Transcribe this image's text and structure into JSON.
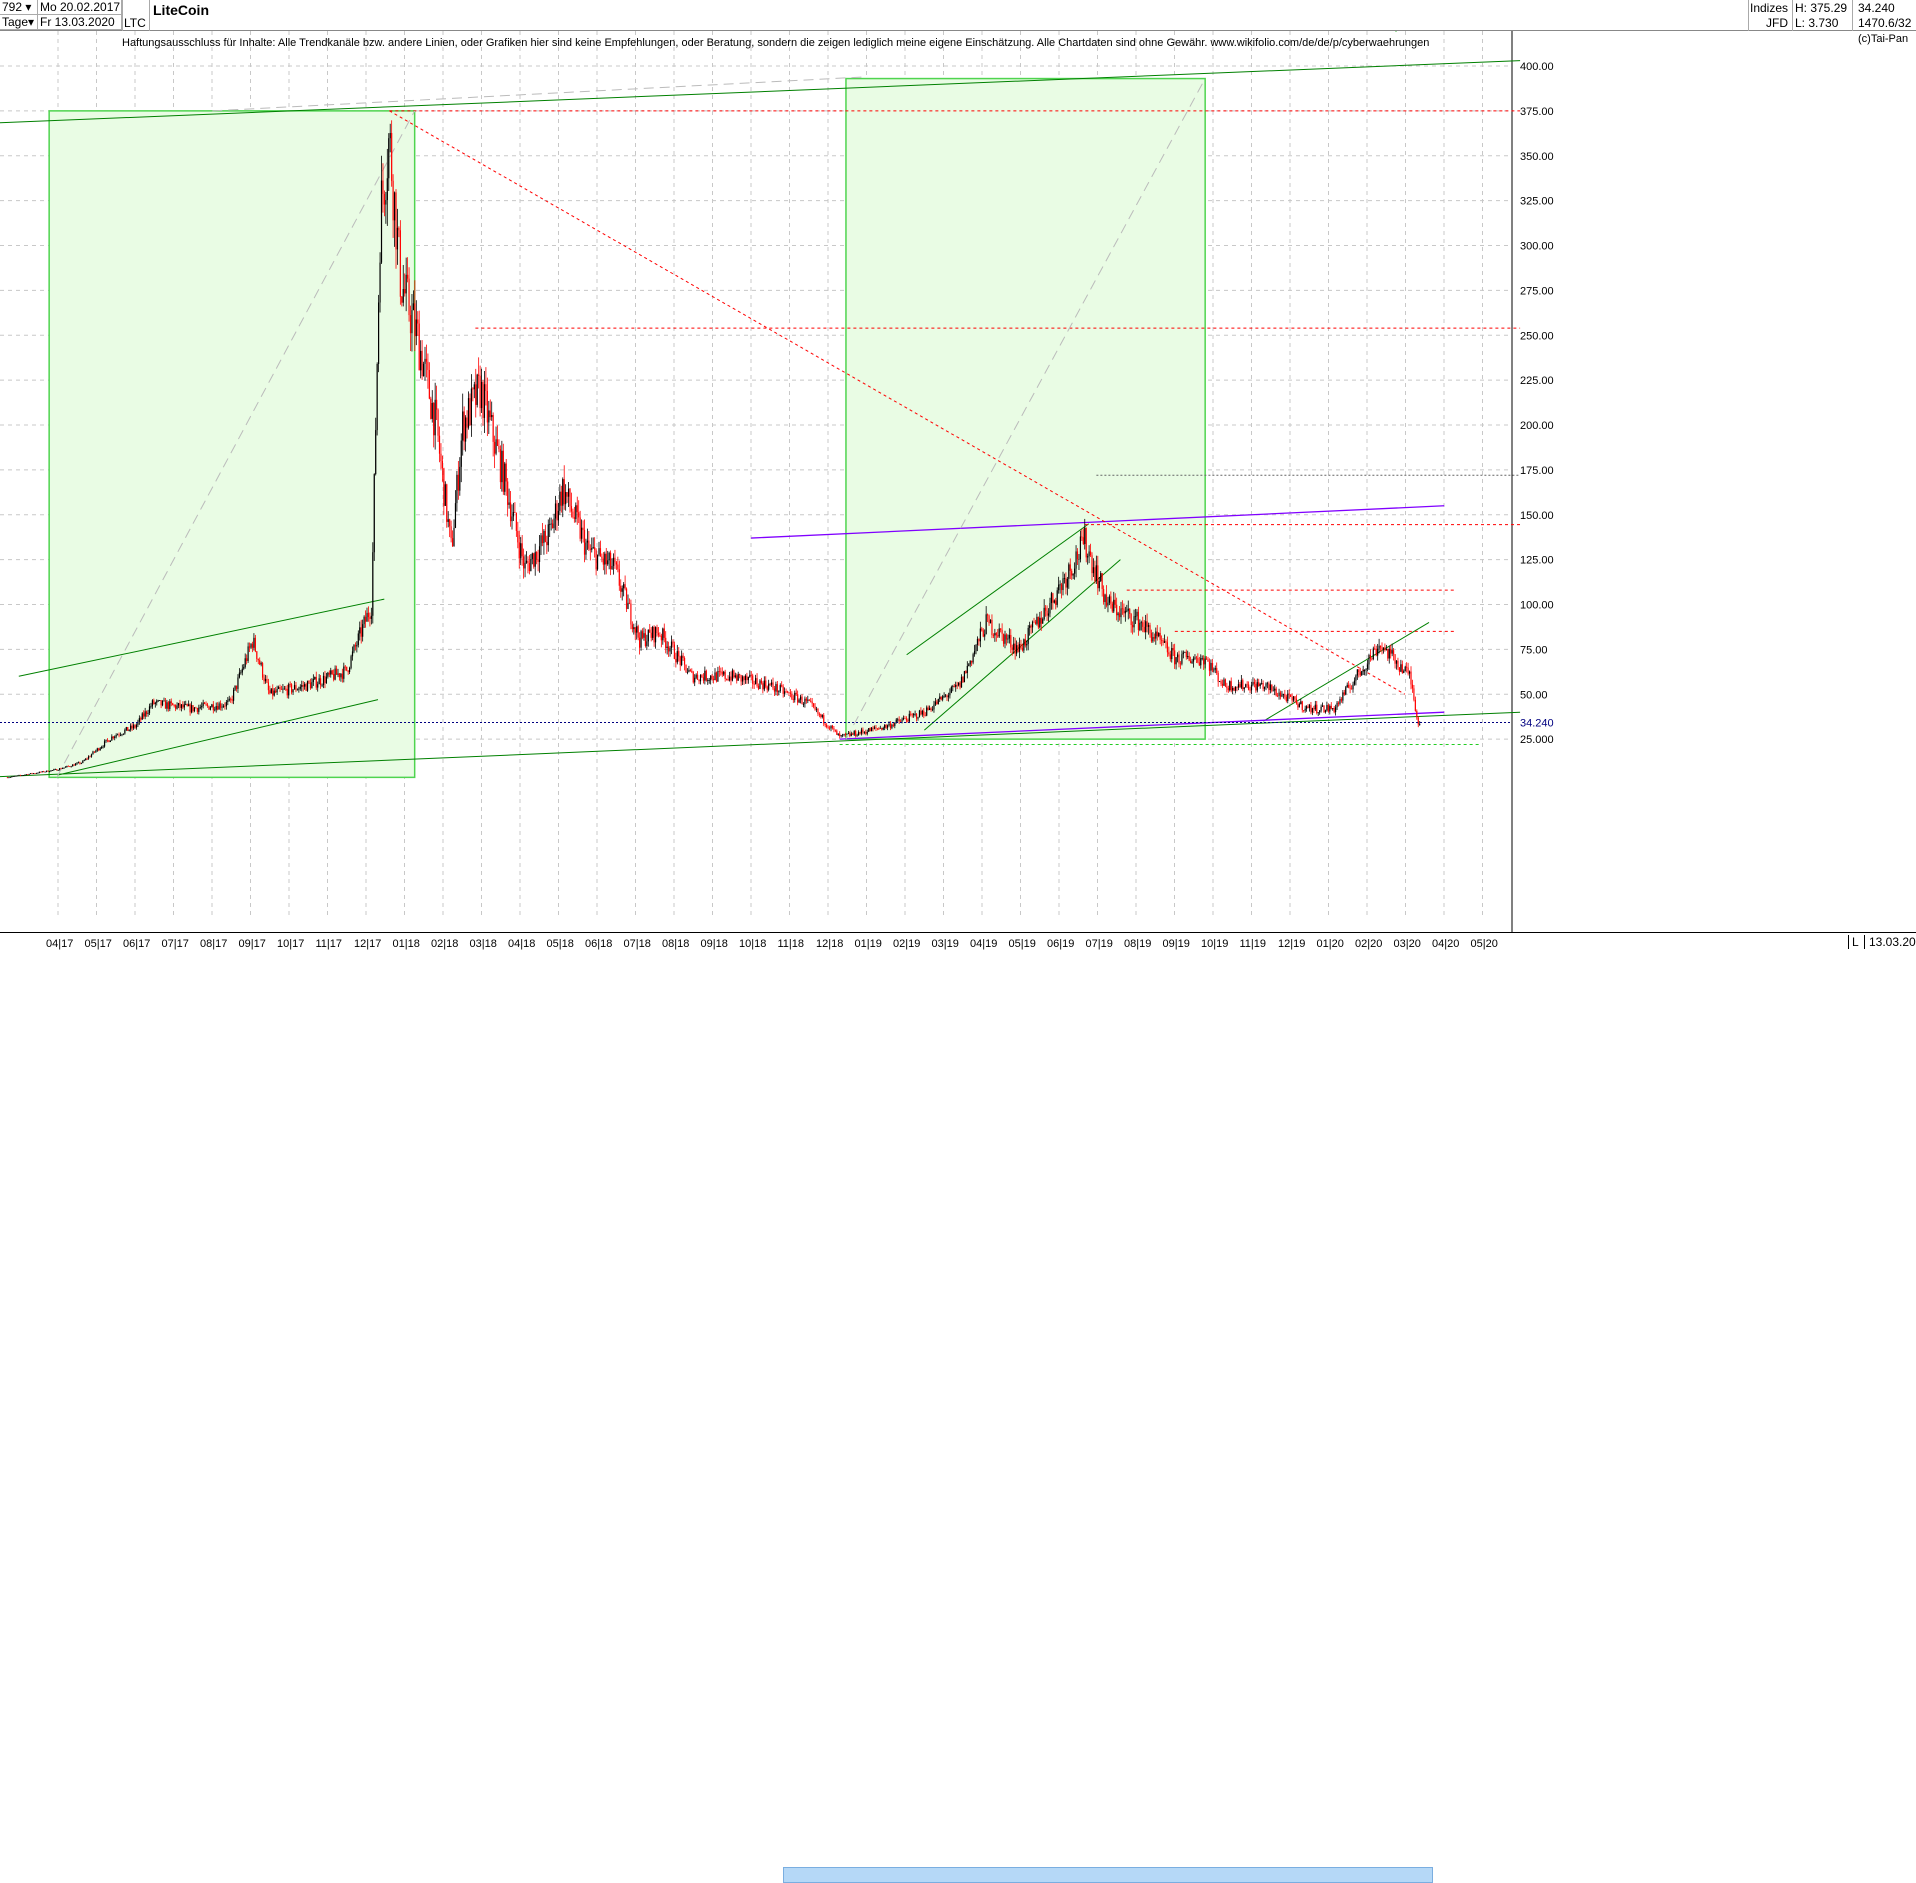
{
  "header": {
    "bars": "792",
    "period": "Tage",
    "start_date": "Mo 20.02.2017",
    "end_date": "Fr 13.03.2020",
    "symbol": "LTC",
    "title": "LiteCoin",
    "exchange_top": "Indizes",
    "exchange_bottom": "JFD",
    "high": "H: 375.29",
    "low": "L: 3.730",
    "last": "34.240",
    "extra": "1470.6/32"
  },
  "disclaimer": "Haftungsausschluss für Inhalte: Alle Trendkanäle bzw. andere Linien, oder Grafiken hier sind keine Empfehlungen, oder Beratung, sondern die zeigen lediglich meine eigene Einschätzung. Alle Chartdaten sind ohne Gewähr.  www.wikifolio.com/de/de/p/cyberwaehrungen",
  "copyright": "(c)Tai-Pan",
  "footer": {
    "mode": "L",
    "date": "13.03.20"
  },
  "colors": {
    "up": "#000000",
    "down": "#ff0000",
    "trend": "#008000",
    "fill": "#e9fce4",
    "resistance": "#ff0000",
    "channel": "#8000ff",
    "last": "#000080"
  },
  "chart_data": {
    "type": "candlestick",
    "title": "LiteCoin",
    "ylim": [
      0,
      410
    ],
    "yticks": [
      25,
      50,
      75,
      100,
      125,
      150,
      175,
      200,
      225,
      250,
      275,
      300,
      325,
      350,
      375,
      400
    ],
    "ytick_labels": [
      "25.000",
      "50.00",
      "75.00",
      "100.00",
      "125.00",
      "150.00",
      "175.00",
      "200.00",
      "225.00",
      "250.00",
      "275.00",
      "300.00",
      "325.00",
      "350.00",
      "375.00",
      "400.00"
    ],
    "last_label": "34.240",
    "xtick_labels": [
      "04|17",
      "05|17",
      "06|17",
      "07|17",
      "08|17",
      "09|17",
      "10|17",
      "11|17",
      "12|17",
      "01|18",
      "02|18",
      "03|18",
      "04|18",
      "05|18",
      "06|18",
      "07|18",
      "08|18",
      "09|18",
      "10|18",
      "11|18",
      "12|18",
      "01|19",
      "02|19",
      "03|19",
      "04|19",
      "05|19",
      "06|19",
      "07|19",
      "08|19",
      "09|19",
      "10|19",
      "11|19",
      "12|19",
      "01|20",
      "02|20",
      "03|20",
      "04|20",
      "05|20"
    ],
    "close_path": [
      [
        "2017-02-20",
        3.7
      ],
      [
        "2017-03-31",
        8
      ],
      [
        "2017-04-20",
        12
      ],
      [
        "2017-05-15",
        27
      ],
      [
        "2017-06-01",
        32
      ],
      [
        "2017-06-15",
        45
      ],
      [
        "2017-07-15",
        42
      ],
      [
        "2017-08-15",
        45
      ],
      [
        "2017-09-02",
        80
      ],
      [
        "2017-09-15",
        50
      ],
      [
        "2017-10-15",
        55
      ],
      [
        "2017-11-15",
        63
      ],
      [
        "2017-12-05",
        100
      ],
      [
        "2017-12-12",
        320
      ],
      [
        "2017-12-19",
        360
      ],
      [
        "2017-12-28",
        280
      ],
      [
        "2018-01-10",
        250
      ],
      [
        "2018-01-25",
        200
      ],
      [
        "2018-02-06",
        130
      ],
      [
        "2018-02-15",
        200
      ],
      [
        "2018-03-01",
        220
      ],
      [
        "2018-03-20",
        170
      ],
      [
        "2018-04-05",
        120
      ],
      [
        "2018-04-25",
        140
      ],
      [
        "2018-05-05",
        165
      ],
      [
        "2018-05-25",
        130
      ],
      [
        "2018-06-15",
        120
      ],
      [
        "2018-06-25",
        100
      ],
      [
        "2018-07-05",
        80
      ],
      [
        "2018-07-20",
        85
      ],
      [
        "2018-08-15",
        60
      ],
      [
        "2018-09-15",
        60
      ],
      [
        "2018-10-15",
        55
      ],
      [
        "2018-11-15",
        45
      ],
      [
        "2018-12-10",
        26
      ],
      [
        "2019-01-15",
        32
      ],
      [
        "2019-02-15",
        40
      ],
      [
        "2019-03-15",
        55
      ],
      [
        "2019-04-05",
        90
      ],
      [
        "2019-05-01",
        75
      ],
      [
        "2019-05-25",
        100
      ],
      [
        "2019-06-22",
        135
      ],
      [
        "2019-07-10",
        100
      ],
      [
        "2019-08-05",
        90
      ],
      [
        "2019-09-01",
        70
      ],
      [
        "2019-09-25",
        70
      ],
      [
        "2019-10-10",
        55
      ],
      [
        "2019-11-10",
        55
      ],
      [
        "2019-12-15",
        42
      ],
      [
        "2020-01-05",
        42
      ],
      [
        "2020-02-10",
        78
      ],
      [
        "2020-03-05",
        60
      ],
      [
        "2020-03-12",
        32
      ],
      [
        "2020-03-13",
        34.24
      ]
    ],
    "boxes": [
      {
        "from": [
          "2017-03-25",
          3.7
        ],
        "to": [
          "2018-01-08",
          375
        ]
      },
      {
        "from": [
          "2018-12-15",
          25
        ],
        "to": [
          "2019-09-25",
          393
        ]
      }
    ],
    "lines": [
      {
        "style": "trend",
        "p": [
          [
            "2017-02-01",
            368
          ],
          [
            "2020-05-31",
            403
          ]
        ]
      },
      {
        "style": "trend",
        "p": [
          [
            "2017-02-01",
            3.7
          ],
          [
            "2020-05-31",
            40
          ]
        ]
      },
      {
        "style": "trend",
        "p": [
          [
            "2017-03-01",
            60
          ],
          [
            "2017-12-15",
            103
          ]
        ]
      },
      {
        "style": "trend",
        "p": [
          [
            "2017-04-01",
            5
          ],
          [
            "2017-12-10",
            47
          ]
        ]
      },
      {
        "style": "trend",
        "p": [
          [
            "2019-02-01",
            72
          ],
          [
            "2019-06-25",
            145
          ]
        ]
      },
      {
        "style": "trend",
        "p": [
          [
            "2019-02-15",
            30
          ],
          [
            "2019-07-20",
            125
          ]
        ]
      },
      {
        "style": "trend",
        "p": [
          [
            "2019-11-10",
            35
          ],
          [
            "2020-03-20",
            90
          ]
        ]
      },
      {
        "style": "channel",
        "p": [
          [
            "2018-10-01",
            137
          ],
          [
            "2020-04-01",
            155
          ]
        ]
      },
      {
        "style": "channel",
        "p": [
          [
            "2018-12-10",
            25
          ],
          [
            "2020-04-01",
            40
          ]
        ]
      },
      {
        "style": "resdiag",
        "p": [
          [
            "2017-12-19",
            375
          ],
          [
            "2020-03-01",
            50
          ]
        ]
      },
      {
        "style": "res",
        "p": [
          [
            "2017-12-19",
            375
          ],
          [
            "2020-05-31",
            375
          ]
        ]
      },
      {
        "style": "res",
        "p": [
          [
            "2018-02-25",
            254
          ],
          [
            "2020-05-31",
            254
          ]
        ]
      },
      {
        "style": "res",
        "p": [
          [
            "2019-06-22",
            144.5
          ],
          [
            "2020-05-31",
            144.5
          ]
        ]
      },
      {
        "style": "res",
        "p": [
          [
            "2019-07-25",
            108
          ],
          [
            "2020-04-10",
            108
          ]
        ]
      },
      {
        "style": "res",
        "p": [
          [
            "2019-09-01",
            85
          ],
          [
            "2020-04-10",
            85
          ]
        ]
      },
      {
        "style": "gray",
        "p": [
          [
            "2019-07-01",
            172
          ],
          [
            "2020-05-31",
            172
          ]
        ]
      },
      {
        "style": "dash",
        "p": [
          [
            "2017-03-31",
            3.7
          ],
          [
            "2018-01-08",
            375
          ]
        ]
      },
      {
        "style": "dash",
        "p": [
          [
            "2018-12-15",
            25
          ],
          [
            "2019-09-25",
            393
          ]
        ]
      },
      {
        "style": "dash",
        "p": [
          [
            "2017-08-01",
            375
          ],
          [
            "2019-01-01",
            394
          ]
        ]
      },
      {
        "style": "green",
        "p": [
          [
            "2018-12-10",
            22
          ],
          [
            "2020-04-30",
            22
          ]
        ]
      }
    ]
  }
}
